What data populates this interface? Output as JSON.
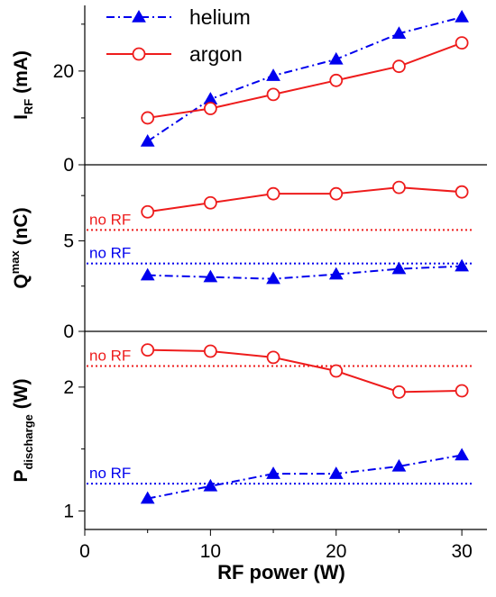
{
  "chart_data": {
    "type": "line",
    "x": [
      5,
      10,
      15,
      20,
      25,
      30
    ],
    "xlabel": "RF power (W)",
    "xlim": [
      0,
      32
    ],
    "xticks": [
      0,
      10,
      20,
      30
    ],
    "legend": {
      "placement": "top-left",
      "entries": [
        {
          "name": "helium",
          "color": "#0000ee",
          "marker": "triangle",
          "linestyle": "dash-dot"
        },
        {
          "name": "argon",
          "color": "#ee1c1c",
          "marker": "circle-open",
          "linestyle": "solid"
        }
      ]
    },
    "panels": [
      {
        "id": "irf",
        "ylabel_main": "I",
        "ylabel_sub": "RF",
        "ylabel_tail": " (mA)",
        "ylim": [
          0,
          34
        ],
        "yticks": [
          0,
          20
        ],
        "series": [
          {
            "name": "helium",
            "values": [
              5,
              14,
              19,
              22.5,
              28,
              31.5
            ]
          },
          {
            "name": "argon",
            "values": [
              10,
              12,
              15,
              18,
              21,
              26
            ]
          }
        ]
      },
      {
        "id": "qmax",
        "ylabel_main": "Q",
        "ylabel_sup": "max",
        "ylabel_tail": " (nC)",
        "ylim": [
          0,
          9.2
        ],
        "yticks": [
          0,
          5
        ],
        "series": [
          {
            "name": "helium",
            "values": [
              3.1,
              3.0,
              2.9,
              3.15,
              3.45,
              3.6
            ]
          },
          {
            "name": "argon",
            "values": [
              6.6,
              7.1,
              7.6,
              7.6,
              7.95,
              7.7
            ]
          }
        ],
        "reference_lines": [
          {
            "series": "argon",
            "value": 5.6,
            "label": "no RF"
          },
          {
            "series": "helium",
            "value": 3.75,
            "label": "no RF"
          }
        ]
      },
      {
        "id": "pdis",
        "ylabel_main": "P",
        "ylabel_sub": "discharge",
        "ylabel_tail": " (W)",
        "ylim": [
          0.85,
          2.45
        ],
        "yticks": [
          1,
          2
        ],
        "series": [
          {
            "name": "helium",
            "values": [
              1.1,
              1.2,
              1.3,
              1.3,
              1.36,
              1.45
            ]
          },
          {
            "name": "argon",
            "values": [
              2.3,
              2.29,
              2.24,
              2.13,
              1.96,
              1.97
            ]
          }
        ],
        "reference_lines": [
          {
            "series": "argon",
            "value": 2.17,
            "label": "no RF"
          },
          {
            "series": "helium",
            "value": 1.22,
            "label": "no RF"
          }
        ]
      }
    ]
  }
}
